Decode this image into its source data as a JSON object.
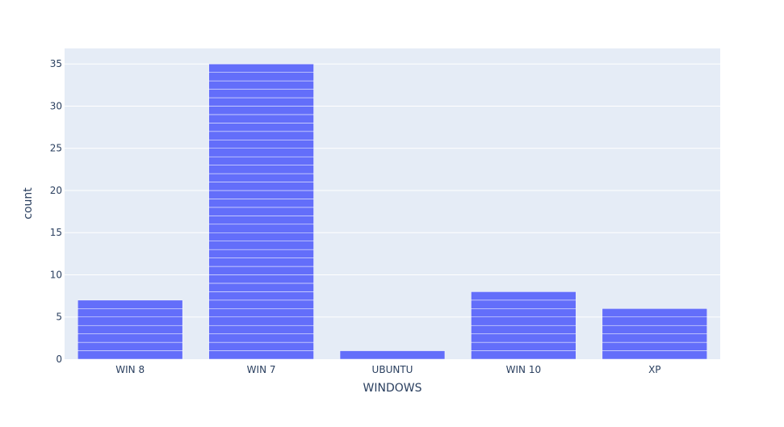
{
  "chart_data": {
    "type": "bar",
    "title": "",
    "xlabel": "WINDOWS",
    "ylabel": "count",
    "categories": [
      "WIN 8",
      "WIN 7",
      "UBUNTU",
      "WIN 10",
      "XP"
    ],
    "values": [
      7,
      35,
      1,
      8,
      6
    ],
    "ylim": [
      0,
      36.84
    ],
    "yticks": [
      0,
      5,
      10,
      15,
      20,
      25,
      30,
      35
    ],
    "grid": true,
    "stacked_unit_segments": true,
    "colors": {
      "bar": "#636efa",
      "plot_bg": "#e5ecf6",
      "grid": "#ffffff",
      "text": "#2a3f5f"
    }
  }
}
